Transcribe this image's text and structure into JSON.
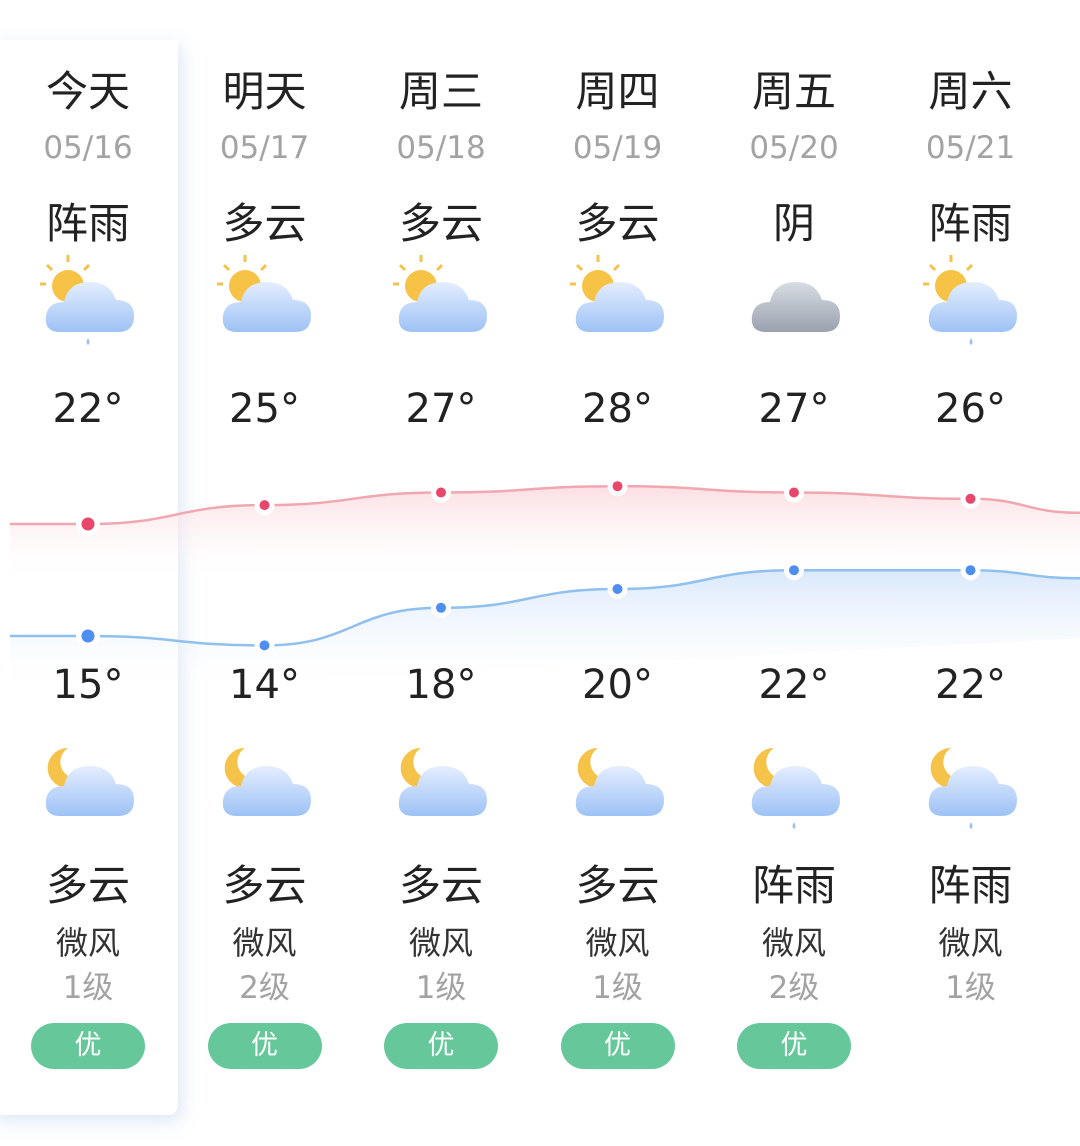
{
  "colors": {
    "high": "#e8466a",
    "low": "#4e8ef0",
    "aqi_good": "#66c89a",
    "high_line": "#f0a7b0",
    "low_line": "#8fc0ee"
  },
  "days": [
    {
      "day": "今天",
      "date": "05/16",
      "day_cond": "阵雨",
      "day_icon": "sun-cloud-rain",
      "high": 22,
      "high_label": "22°",
      "low": 15,
      "low_label": "15°",
      "night_icon": "moon-cloud",
      "night_cond": "多云",
      "wind": "微风",
      "level": "1级",
      "aqi": "优"
    },
    {
      "day": "明天",
      "date": "05/17",
      "day_cond": "多云",
      "day_icon": "sun-cloud",
      "high": 25,
      "high_label": "25°",
      "low": 14,
      "low_label": "14°",
      "night_icon": "moon-cloud",
      "night_cond": "多云",
      "wind": "微风",
      "level": "2级",
      "aqi": "优"
    },
    {
      "day": "周三",
      "date": "05/18",
      "day_cond": "多云",
      "day_icon": "sun-cloud",
      "high": 27,
      "high_label": "27°",
      "low": 18,
      "low_label": "18°",
      "night_icon": "moon-cloud",
      "night_cond": "多云",
      "wind": "微风",
      "level": "1级",
      "aqi": "优"
    },
    {
      "day": "周四",
      "date": "05/19",
      "day_cond": "多云",
      "day_icon": "sun-cloud",
      "high": 28,
      "high_label": "28°",
      "low": 20,
      "low_label": "20°",
      "night_icon": "moon-cloud",
      "night_cond": "多云",
      "wind": "微风",
      "level": "1级",
      "aqi": "优"
    },
    {
      "day": "周五",
      "date": "05/20",
      "day_cond": "阴",
      "day_icon": "cloud",
      "high": 27,
      "high_label": "27°",
      "low": 22,
      "low_label": "22°",
      "night_icon": "moon-cloud-rain",
      "night_cond": "阵雨",
      "wind": "微风",
      "level": "2级",
      "aqi": "优"
    },
    {
      "day": "周六",
      "date": "05/21",
      "day_cond": "阵雨",
      "day_icon": "sun-cloud-rain",
      "high": 26,
      "high_label": "26°",
      "low": 22,
      "low_label": "22°",
      "night_icon": "moon-cloud-rain",
      "night_cond": "阵雨",
      "wind": "微风",
      "level": "1级",
      "aqi": ""
    }
  ]
}
